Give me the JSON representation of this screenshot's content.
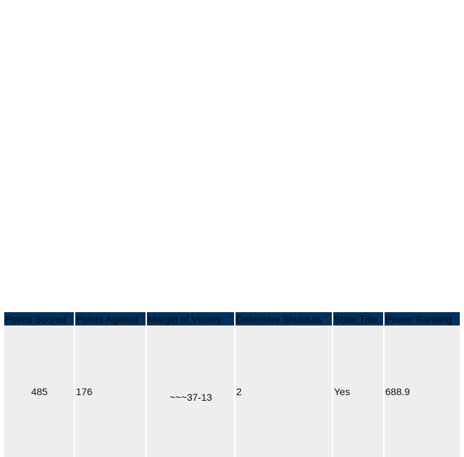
{
  "table": {
    "headers": [
      "Points Scored",
      "Points Against",
      "Margin of Victory",
      "Defensive Shutouts",
      "State Title",
      "Power Ranking"
    ],
    "rows": [
      [
        "485",
        "176",
        "~~~37-13",
        "2",
        "Yes",
        "688.9"
      ]
    ]
  }
}
